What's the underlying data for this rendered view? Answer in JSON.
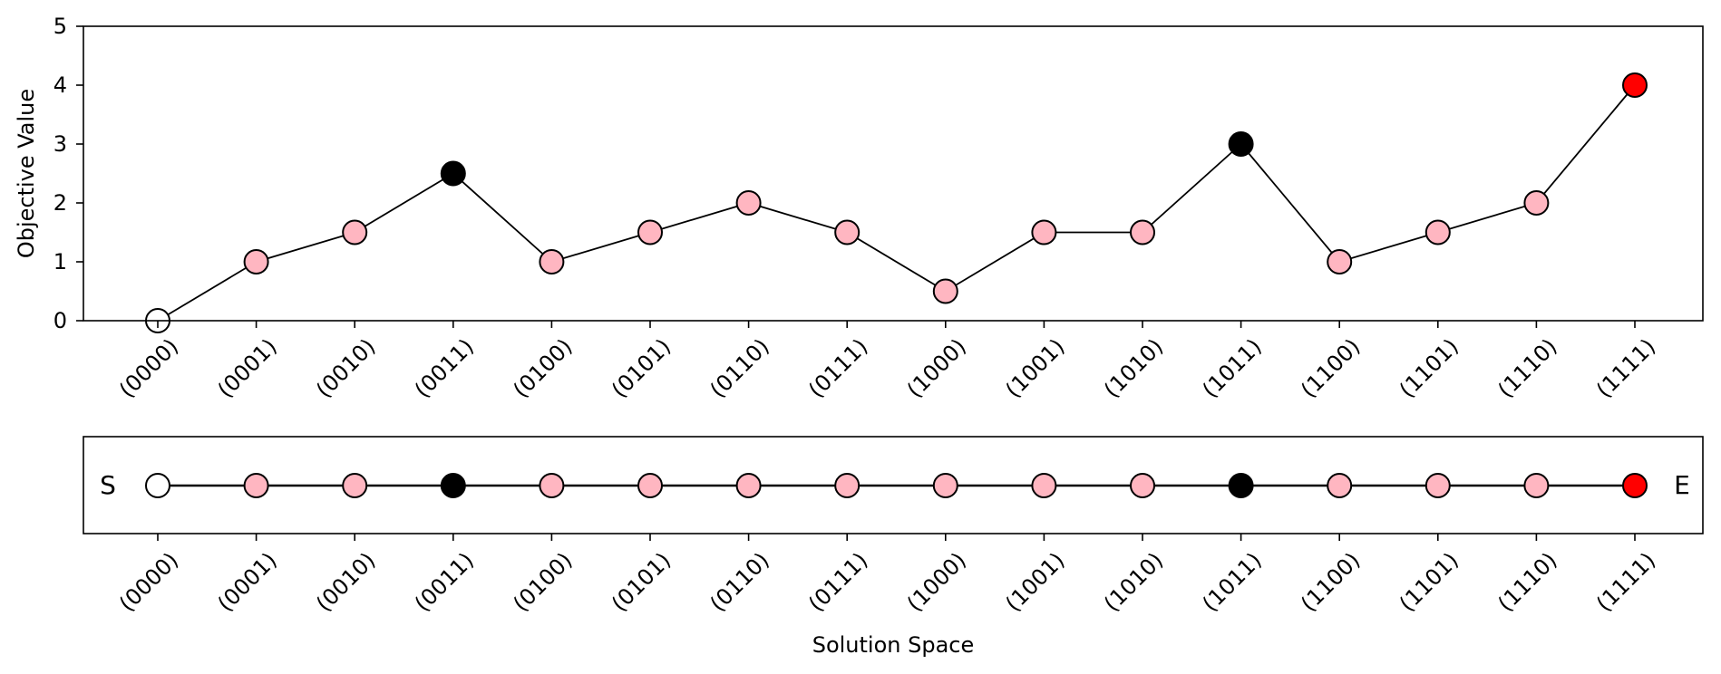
{
  "chart_data": [
    {
      "type": "line",
      "title": "",
      "xlabel": "",
      "ylabel": "Objective Value",
      "ylim": [
        0,
        5
      ],
      "yticks": [
        "0",
        "1",
        "2",
        "3",
        "4",
        "5"
      ],
      "categories": [
        "(0000)",
        "(0001)",
        "(0010)",
        "(0011)",
        "(0100)",
        "(0101)",
        "(0110)",
        "(0111)",
        "(1000)",
        "(1001)",
        "(1010)",
        "(1011)",
        "(1100)",
        "(1101)",
        "(1110)",
        "(1111)"
      ],
      "values": [
        0,
        1,
        1.5,
        2.5,
        1,
        1.5,
        2,
        1.5,
        0.5,
        1.5,
        1.5,
        3,
        1,
        1.5,
        2,
        4
      ],
      "point_colors": [
        "#ffffff",
        "#ffb6c1",
        "#ffb6c1",
        "#000000",
        "#ffb6c1",
        "#ffb6c1",
        "#ffb6c1",
        "#ffb6c1",
        "#ffb6c1",
        "#ffb6c1",
        "#ffb6c1",
        "#000000",
        "#ffb6c1",
        "#ffb6c1",
        "#ffb6c1",
        "#ff0000"
      ],
      "grid": false
    },
    {
      "type": "line",
      "title": "",
      "xlabel": "Solution Space",
      "ylabel": "",
      "categories": [
        "(0000)",
        "(0001)",
        "(0010)",
        "(0011)",
        "(0100)",
        "(0101)",
        "(0110)",
        "(0111)",
        "(1000)",
        "(1001)",
        "(1010)",
        "(1011)",
        "(1100)",
        "(1101)",
        "(1110)",
        "(1111)"
      ],
      "point_colors": [
        "#ffffff",
        "#ffb6c1",
        "#ffb6c1",
        "#000000",
        "#ffb6c1",
        "#ffb6c1",
        "#ffb6c1",
        "#ffb6c1",
        "#ffb6c1",
        "#ffb6c1",
        "#ffb6c1",
        "#000000",
        "#ffb6c1",
        "#ffb6c1",
        "#ffb6c1",
        "#ff0000"
      ],
      "start_label": "S",
      "end_label": "E",
      "grid": false
    }
  ]
}
